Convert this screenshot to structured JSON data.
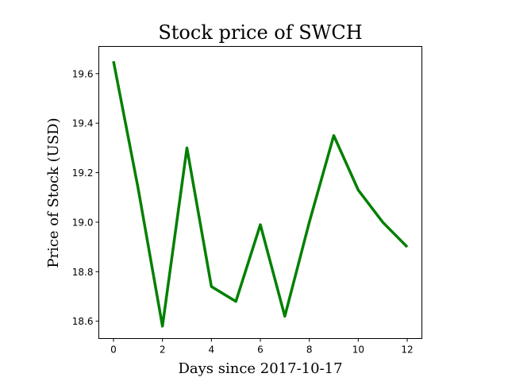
{
  "chart_data": {
    "type": "line",
    "title": "Stock price of SWCH",
    "xlabel": "Days since 2017-10-17",
    "ylabel": "Price of Stock (USD)",
    "x": [
      0,
      1,
      2,
      3,
      4,
      5,
      6,
      7,
      8,
      9,
      10,
      11,
      12
    ],
    "series": [
      {
        "values": [
          19.65,
          19.14,
          18.58,
          19.3,
          18.74,
          18.68,
          18.99,
          18.62,
          19.0,
          19.35,
          19.13,
          19.0,
          18.9
        ],
        "color": "#008000"
      }
    ],
    "xlim": [
      -0.6,
      12.6
    ],
    "ylim": [
      18.53,
      19.71
    ],
    "xticks": [
      0,
      2,
      4,
      6,
      8,
      10,
      12
    ],
    "xtick_labels": [
      "0",
      "2",
      "4",
      "6",
      "8",
      "10",
      "12"
    ],
    "yticks": [
      18.6,
      18.8,
      19.0,
      19.2,
      19.4,
      19.6
    ],
    "ytick_labels": [
      "18.6",
      "18.8",
      "19.0",
      "19.2",
      "19.4",
      "19.6"
    ],
    "grid": false
  }
}
